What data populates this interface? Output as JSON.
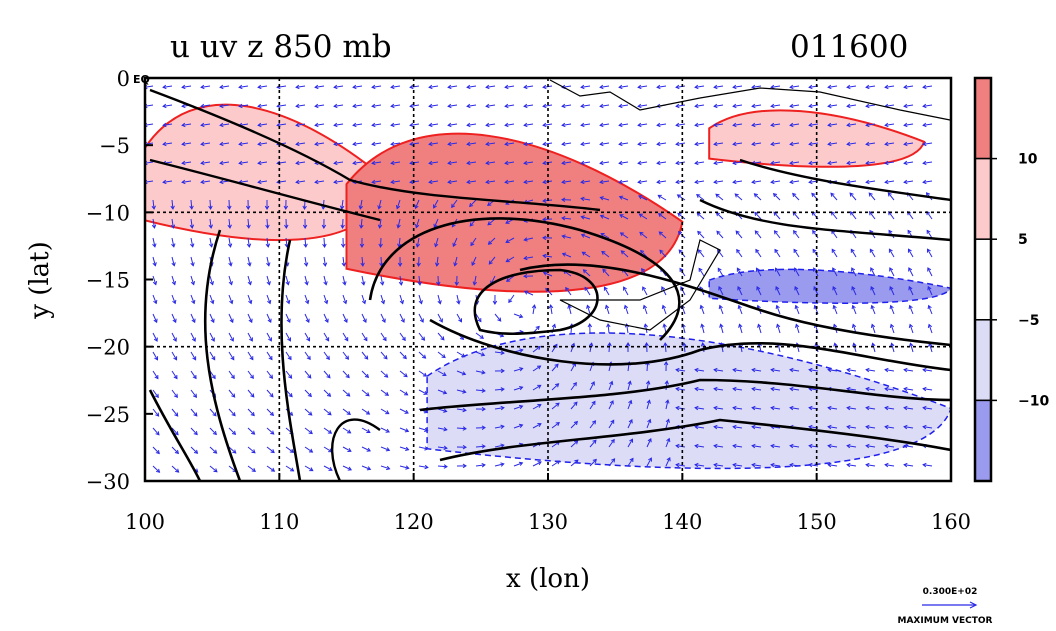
{
  "chart_data": {
    "type": "heatmap",
    "title": "u uv z 850 mb",
    "date_label": "011600",
    "xlabel": "x (lon)",
    "ylabel": "y (lat)",
    "xlim": [
      100,
      160
    ],
    "ylim": [
      -30,
      0
    ],
    "x_ticks": [
      100,
      110,
      120,
      130,
      140,
      150,
      160
    ],
    "y_ticks": [
      0,
      -5,
      -10,
      -15,
      -20,
      -25,
      -30
    ],
    "y_tick_labels": [
      "0",
      "−5",
      "−10",
      "−15",
      "−20",
      "−25",
      "−30"
    ],
    "x_gridlines": [
      110,
      120,
      130,
      140,
      150
    ],
    "y_gridlines": [
      -10,
      -20
    ],
    "equator_mark": "EQ",
    "colorbar": {
      "labels": [
        "10",
        "5",
        "−5",
        "−10"
      ],
      "levels": [
        10,
        5,
        -5,
        -10
      ],
      "colors": [
        "#f08080",
        "#fccaca",
        "#ffffff",
        "#dcdcf6",
        "#9a9aee"
      ]
    },
    "shaded_regions": [
      {
        "level": "5 to 10",
        "color": "#fccaca",
        "lon": [
          100,
          118
        ],
        "lat": [
          -13,
          -1
        ]
      },
      {
        "level": "above 10",
        "color": "#f08080",
        "lon": [
          115,
          140
        ],
        "lat": [
          -17,
          -3
        ]
      },
      {
        "level": "5 to 10",
        "color": "#fccaca",
        "lon": [
          142,
          158
        ],
        "lat": [
          -7,
          -2
        ]
      },
      {
        "level": "-5 to -10",
        "color": "#dcdcf6",
        "lon": [
          121,
          160
        ],
        "lat": [
          -30,
          -18
        ]
      },
      {
        "level": "below -10",
        "color": "#9a9aee",
        "lon": [
          142,
          160
        ],
        "lat": [
          -17,
          -14
        ]
      }
    ],
    "vector_reference": {
      "value": "0.300E+02",
      "label": "MAXIMUM  VECTOR"
    },
    "colors": {
      "positive": "#ee2020",
      "negative": "#2020ee",
      "vector": "#2a2ae6",
      "contour": "#000000"
    }
  }
}
